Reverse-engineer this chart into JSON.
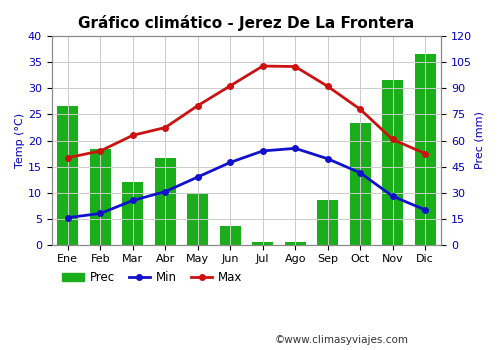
{
  "title": "Gráfico climático - Jerez De La Frontera",
  "months": [
    "Ene",
    "Feb",
    "Mar",
    "Abr",
    "May",
    "Jun",
    "Jul",
    "Ago",
    "Sep",
    "Oct",
    "Nov",
    "Dic"
  ],
  "prec": [
    80,
    55,
    36,
    50,
    30,
    11,
    1.5,
    1.5,
    26,
    70,
    95,
    110
  ],
  "temp_min": [
    5.2,
    6.0,
    8.5,
    10.2,
    13.0,
    15.8,
    18.0,
    18.5,
    16.5,
    13.8,
    9.3,
    6.7
  ],
  "temp_max": [
    16.7,
    18.0,
    21.0,
    22.5,
    26.7,
    30.5,
    34.3,
    34.2,
    30.4,
    26.0,
    20.2,
    17.5
  ],
  "bar_color": "#1aaf1a",
  "min_color": "#1111cc",
  "max_color": "#cc1111",
  "temp_ylim": [
    0,
    40
  ],
  "prec_ylim": [
    0,
    120
  ],
  "temp_yticks": [
    0,
    5,
    10,
    15,
    20,
    25,
    30,
    35,
    40
  ],
  "prec_yticks": [
    0,
    15,
    30,
    45,
    60,
    75,
    90,
    105,
    120
  ],
  "ylabel_left": "Temp (°C)",
  "ylabel_right": "Prec (mm)",
  "watermark": "©www.climasyviajes.com",
  "bg_color": "#ffffff",
  "grid_color": "#cccccc",
  "title_fontsize": 11,
  "label_fontsize": 8,
  "tick_fontsize": 8,
  "legend_fontsize": 8.5
}
